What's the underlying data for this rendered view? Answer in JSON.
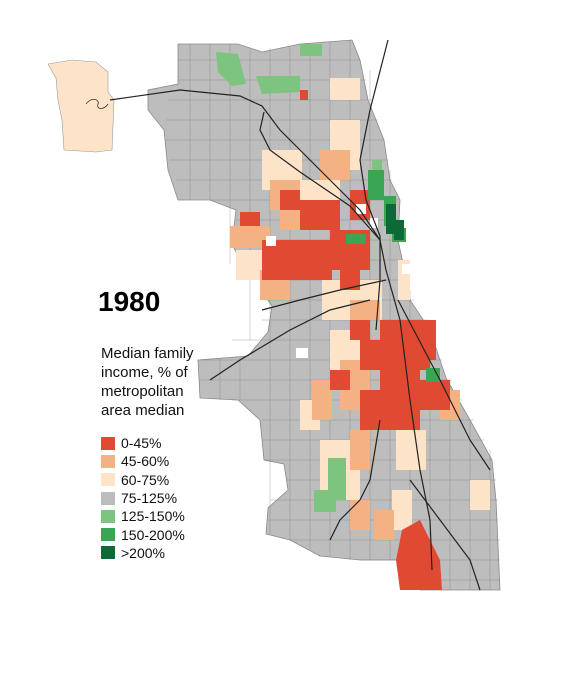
{
  "title": "1980",
  "legend": {
    "title_lines": [
      "Median family",
      "income, % of",
      "metropolitan",
      "area median"
    ],
    "items": [
      {
        "label": "0-45%",
        "color": "#e04a33"
      },
      {
        "label": "45-60%",
        "color": "#f4b183"
      },
      {
        "label": "60-75%",
        "color": "#fde4c8"
      },
      {
        "label": "75-125%",
        "color": "#bdbdbd"
      },
      {
        "label": "125-150%",
        "color": "#7cc47f"
      },
      {
        "label": "150-200%",
        "color": "#3aa654"
      },
      {
        "label": ">200%",
        "color": "#0b6a35"
      }
    ]
  }
}
